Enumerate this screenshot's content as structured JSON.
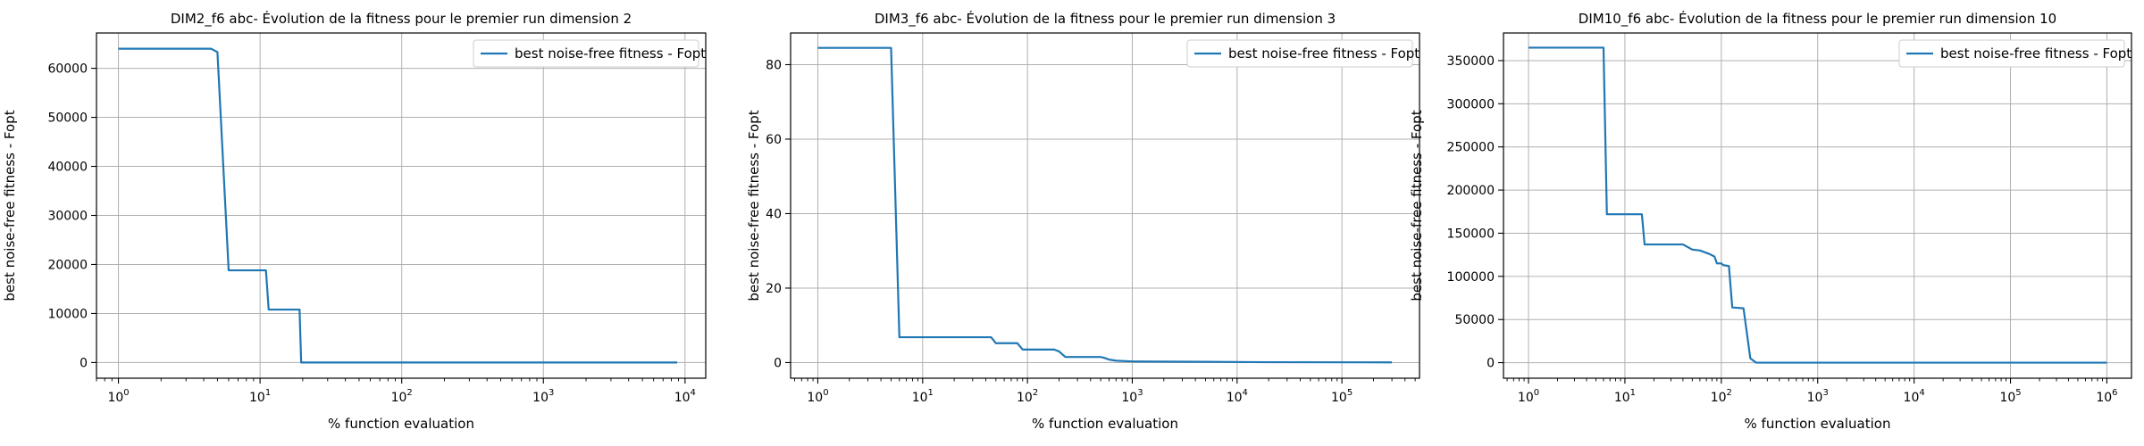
{
  "colors": {
    "series": "#1f77b4"
  },
  "chart_data": [
    {
      "type": "line",
      "title": "DIM2_f6 abc- Évolution de la fitness pour le premier run dimension 2",
      "xlabel": "% function evaluation",
      "ylabel": "best noise-free fitness - Fopt",
      "xscale": "log",
      "xlim": [
        0.7,
        14000
      ],
      "ylim": [
        -3200,
        67200
      ],
      "xticks": [
        {
          "v": 1,
          "b": "10",
          "e": "0"
        },
        {
          "v": 10,
          "b": "10",
          "e": "1"
        },
        {
          "v": 100,
          "b": "10",
          "e": "2"
        },
        {
          "v": 1000,
          "b": "10",
          "e": "3"
        },
        {
          "v": 10000,
          "b": "10",
          "e": "4"
        }
      ],
      "yticks": [
        {
          "v": 0,
          "label": "0"
        },
        {
          "v": 10000,
          "label": "10000"
        },
        {
          "v": 20000,
          "label": "20000"
        },
        {
          "v": 30000,
          "label": "30000"
        },
        {
          "v": 40000,
          "label": "40000"
        },
        {
          "v": 50000,
          "label": "50000"
        },
        {
          "v": 60000,
          "label": "60000"
        }
      ],
      "grid": true,
      "legend_position": "top-right",
      "series": [
        {
          "name": "best noise-free fitness - Fopt",
          "x": [
            1,
            4.5,
            5,
            6,
            6,
            11,
            11.5,
            17,
            19,
            19.5,
            8800
          ],
          "y": [
            64000,
            64000,
            63300,
            18800,
            18800,
            18800,
            10800,
            10800,
            10800,
            0,
            0
          ]
        }
      ]
    },
    {
      "type": "line",
      "title": "DIM3_f6 abc- Évolution de la fitness pour le premier run dimension 3",
      "xlabel": "% function evaluation",
      "ylabel": "best noise-free fitness - Fopt",
      "xscale": "log",
      "xlim": [
        0.55,
        550000
      ],
      "ylim": [
        -4.2,
        88.5
      ],
      "xticks": [
        {
          "v": 1,
          "b": "10",
          "e": "0"
        },
        {
          "v": 10,
          "b": "10",
          "e": "1"
        },
        {
          "v": 100,
          "b": "10",
          "e": "2"
        },
        {
          "v": 1000,
          "b": "10",
          "e": "3"
        },
        {
          "v": 10000,
          "b": "10",
          "e": "4"
        },
        {
          "v": 100000,
          "b": "10",
          "e": "5"
        }
      ],
      "yticks": [
        {
          "v": 0,
          "label": "0"
        },
        {
          "v": 20,
          "label": "20"
        },
        {
          "v": 40,
          "label": "40"
        },
        {
          "v": 60,
          "label": "60"
        },
        {
          "v": 80,
          "label": "80"
        }
      ],
      "grid": true,
      "legend_position": "top-right",
      "series": [
        {
          "name": "best noise-free fitness - Fopt",
          "x": [
            1,
            5,
            6,
            45,
            50,
            80,
            90,
            180,
            200,
            230,
            500,
            550,
            600,
            700,
            1000,
            5000,
            20000,
            300000
          ],
          "y": [
            84.5,
            84.5,
            6.8,
            6.8,
            5.2,
            5.2,
            3.5,
            3.5,
            3.0,
            1.5,
            1.5,
            1.2,
            0.8,
            0.5,
            0.3,
            0.2,
            0.1,
            0.05
          ]
        }
      ]
    },
    {
      "type": "line",
      "title": "DIM10_f6 abc- Évolution de la fitness pour le premier run dimension 10",
      "xlabel": "% function evaluation",
      "ylabel": "best noise-free fitness - Fopt",
      "xscale": "log",
      "xlim": [
        0.55,
        1800000
      ],
      "ylim": [
        -18000,
        382000
      ],
      "xticks": [
        {
          "v": 1,
          "b": "10",
          "e": "0"
        },
        {
          "v": 10,
          "b": "10",
          "e": "1"
        },
        {
          "v": 100,
          "b": "10",
          "e": "2"
        },
        {
          "v": 1000,
          "b": "10",
          "e": "3"
        },
        {
          "v": 10000,
          "b": "10",
          "e": "4"
        },
        {
          "v": 100000,
          "b": "10",
          "e": "5"
        },
        {
          "v": 1000000,
          "b": "10",
          "e": "6"
        }
      ],
      "yticks": [
        {
          "v": 0,
          "label": "0"
        },
        {
          "v": 50000,
          "label": "50000"
        },
        {
          "v": 100000,
          "label": "100000"
        },
        {
          "v": 150000,
          "label": "150000"
        },
        {
          "v": 200000,
          "label": "200000"
        },
        {
          "v": 250000,
          "label": "250000"
        },
        {
          "v": 300000,
          "label": "300000"
        },
        {
          "v": 350000,
          "label": "350000"
        }
      ],
      "grid": true,
      "legend_position": "top-right",
      "series": [
        {
          "name": "best noise-free fitness - Fopt",
          "x": [
            1,
            6,
            6.5,
            15,
            16,
            40,
            50,
            60,
            75,
            85,
            90,
            100,
            105,
            120,
            130,
            170,
            200,
            230,
            1000000
          ],
          "y": [
            365000,
            365000,
            172000,
            172000,
            137000,
            137000,
            131000,
            130000,
            126000,
            123000,
            115000,
            115000,
            113000,
            112000,
            64000,
            63000,
            5000,
            0,
            0
          ]
        }
      ]
    }
  ]
}
